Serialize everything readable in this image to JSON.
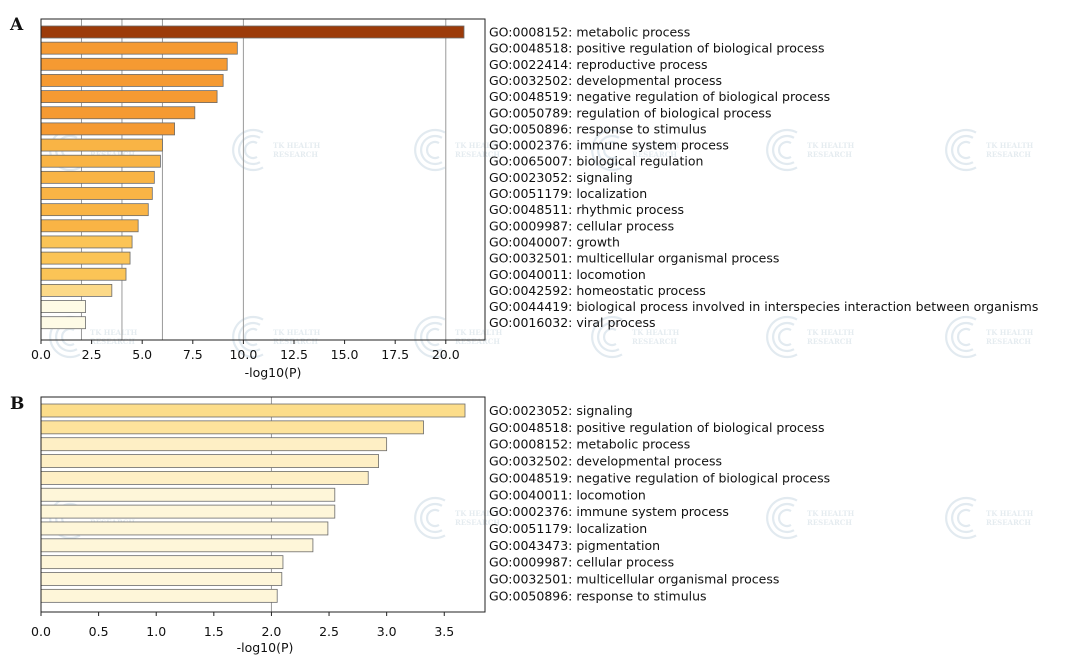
{
  "figure": {
    "panels": [
      "A",
      "B"
    ],
    "watermark_text": [
      "TK HEALTH",
      "RESEARCH"
    ]
  },
  "chart_data": [
    {
      "type": "bar",
      "orientation": "horizontal",
      "panel": "A",
      "title": "",
      "xlabel": "-log10(P)",
      "ylabel": "",
      "xlim": [
        0,
        21.3
      ],
      "xticks": [
        0,
        2.5,
        5,
        7.5,
        10,
        12.5,
        15,
        17.5,
        20
      ],
      "xtick_labels": [
        "0.0",
        "2.5",
        "5.0",
        "7.5",
        "10.0",
        "12.5",
        "15.0",
        "17.5",
        "20.0"
      ],
      "gridlines_x": [
        2,
        4,
        6,
        10,
        20
      ],
      "categories": [
        "GO:0008152: metabolic process",
        "GO:0048518: positive regulation of biological process",
        "GO:0022414: reproductive process",
        "GO:0032502: developmental process",
        "GO:0048519: negative regulation of biological process",
        "GO:0050789: regulation of biological process",
        "GO:0050896: response to stimulus",
        "GO:0002376: immune system process",
        "GO:0065007: biological regulation",
        "GO:0023052: signaling",
        "GO:0051179: localization",
        "GO:0048511: rhythmic process",
        "GO:0009987: cellular process",
        "GO:0040007: growth",
        "GO:0032501: multicellular organismal process",
        "GO:0040011: locomotion",
        "GO:0042592: homeostatic process",
        "GO:0044419: biological process involved in interspecies interaction between organisms",
        "GO:0016032: viral process"
      ],
      "values": [
        20.9,
        9.7,
        9.2,
        9.0,
        8.7,
        7.6,
        6.6,
        6.0,
        5.9,
        5.6,
        5.5,
        5.3,
        4.8,
        4.5,
        4.4,
        4.2,
        3.5,
        2.2,
        2.2
      ],
      "colors": [
        "#9c3b0a",
        "#f59a32",
        "#f59a32",
        "#f59a32",
        "#f59a32",
        "#f59a32",
        "#f59a32",
        "#f9b445",
        "#f9b445",
        "#f9b445",
        "#f9b445",
        "#f9b445",
        "#f9b445",
        "#fbc456",
        "#fbc456",
        "#fbc456",
        "#fcd988",
        "#fefbe6",
        "#fefbe6"
      ]
    },
    {
      "type": "bar",
      "orientation": "horizontal",
      "panel": "B",
      "title": "",
      "xlabel": "-log10(P)",
      "ylabel": "",
      "xlim": [
        0,
        3.8
      ],
      "xticks": [
        0,
        0.5,
        1,
        1.5,
        2,
        2.5,
        3,
        3.5
      ],
      "xtick_labels": [
        "0.0",
        "0.5",
        "1.0",
        "1.5",
        "2.0",
        "2.5",
        "3.0",
        "3.5"
      ],
      "gridlines_x": [
        2
      ],
      "categories": [
        "GO:0023052: signaling",
        "GO:0048518: positive regulation of biological process",
        "GO:0008152: metabolic process",
        "GO:0032502: developmental process",
        "GO:0048519: negative regulation of biological process",
        "GO:0040011: locomotion",
        "GO:0002376: immune system process",
        "GO:0051179: localization",
        "GO:0043473: pigmentation",
        "GO:0009987: cellular process",
        "GO:0032501: multicellular organismal process",
        "GO:0050896: response to stimulus"
      ],
      "values": [
        3.68,
        3.32,
        3.0,
        2.93,
        2.84,
        2.55,
        2.55,
        2.49,
        2.36,
        2.1,
        2.09,
        2.05
      ],
      "colors": [
        "#fcdd8a",
        "#fde39c",
        "#feefc5",
        "#feefc5",
        "#feefc5",
        "#fef6d9",
        "#fef6d9",
        "#fef6d9",
        "#fef6d9",
        "#fef6d9",
        "#fef6d9",
        "#fef6d9"
      ]
    }
  ]
}
